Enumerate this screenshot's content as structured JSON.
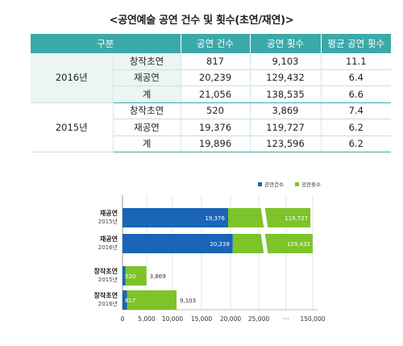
{
  "title": "<공연예술 공연 건수 및 횟수(초연/재연)>",
  "table": {
    "headers": [
      "구분",
      "공연 건수",
      "공연 횟수",
      "평균 공연 횟수"
    ],
    "groups": [
      {
        "year": "2016년",
        "rows": [
          {
            "kind": "창작초연",
            "count": "817",
            "times": "9,103",
            "avg": "11.1"
          },
          {
            "kind": "재공연",
            "count": "20,239",
            "times": "129,432",
            "avg": "6.4"
          },
          {
            "kind": "계",
            "count": "21,056",
            "times": "138,535",
            "avg": "6.6"
          }
        ]
      },
      {
        "year": "2015년",
        "rows": [
          {
            "kind": "창작초연",
            "count": "520",
            "times": "3,869",
            "avg": "7.4"
          },
          {
            "kind": "재공연",
            "count": "19,376",
            "times": "119,727",
            "avg": "6.2"
          },
          {
            "kind": "계",
            "count": "19,896",
            "times": "123,596",
            "avg": "6.2"
          }
        ]
      }
    ]
  },
  "chart_data": {
    "type": "bar",
    "orientation": "horizontal",
    "stacked": true,
    "axis_break": true,
    "categories": [
      {
        "name": "재공연",
        "year": "2015년"
      },
      {
        "name": "재공연",
        "year": "2016년"
      },
      {
        "name": "창작초연",
        "year": "2015년"
      },
      {
        "name": "창작초연",
        "year": "2016년"
      }
    ],
    "series": [
      {
        "name": "공연건수",
        "color": "#1a65b8",
        "values": [
          19376,
          20239,
          520,
          817
        ],
        "labels": [
          "19,376",
          "20,239",
          "520",
          "817"
        ]
      },
      {
        "name": "공연횟수",
        "color": "#7dc32a",
        "values": [
          119727,
          129432,
          3869,
          9103
        ],
        "labels": [
          "119,727",
          "129,432",
          "3,869",
          "9,103"
        ]
      }
    ],
    "x_ticks": [
      "0",
      "5,000",
      "10,000",
      "15,000",
      "20,000",
      "25,000",
      "···",
      "150,000"
    ],
    "legend": "top-right",
    "grid": true
  }
}
